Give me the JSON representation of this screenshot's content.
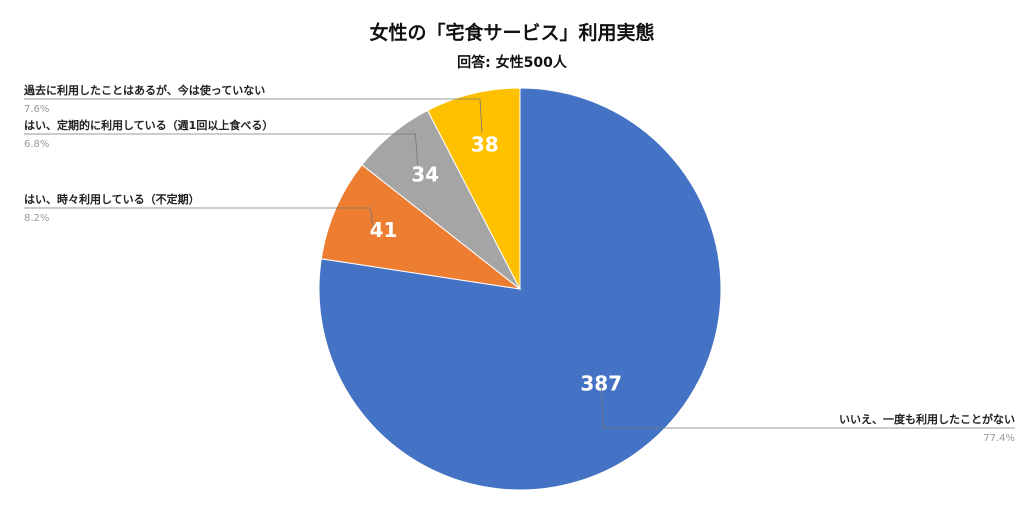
{
  "chart_data": {
    "type": "pie",
    "title": "女性の「宅食サービス」利用実態",
    "subtitle": "回答: 女性500人",
    "slices": [
      {
        "label": "いいえ、一度も利用したことがない",
        "value": 387,
        "percent": "77.4%",
        "color": "#4472C4"
      },
      {
        "label": "はい、時々利用している（不定期）",
        "value": 41,
        "percent": "8.2%",
        "color": "#ED7D31"
      },
      {
        "label": "はい、定期的に利用している（週1回以上食べる）",
        "value": 34,
        "percent": "6.8%",
        "color": "#A5A5A5"
      },
      {
        "label": "過去に利用したことはあるが、今は使っていない",
        "value": 38,
        "percent": "7.6%",
        "color": "#FFC000"
      }
    ]
  }
}
